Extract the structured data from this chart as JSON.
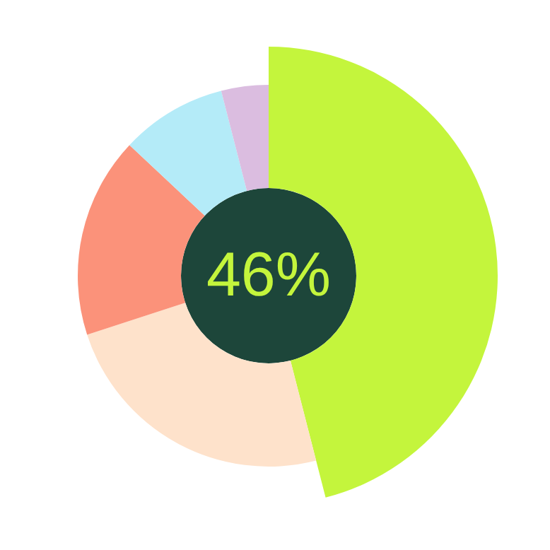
{
  "chart_data": {
    "type": "donut",
    "categories": [
      null,
      null,
      null,
      null,
      null
    ],
    "values": [
      46,
      24,
      17,
      9,
      4
    ],
    "colors": [
      "#c4f53c",
      "#fee2cb",
      "#fb927a",
      "#b4ebf8",
      "#dbbde0"
    ],
    "annotations": [
      "46%"
    ]
  }
}
